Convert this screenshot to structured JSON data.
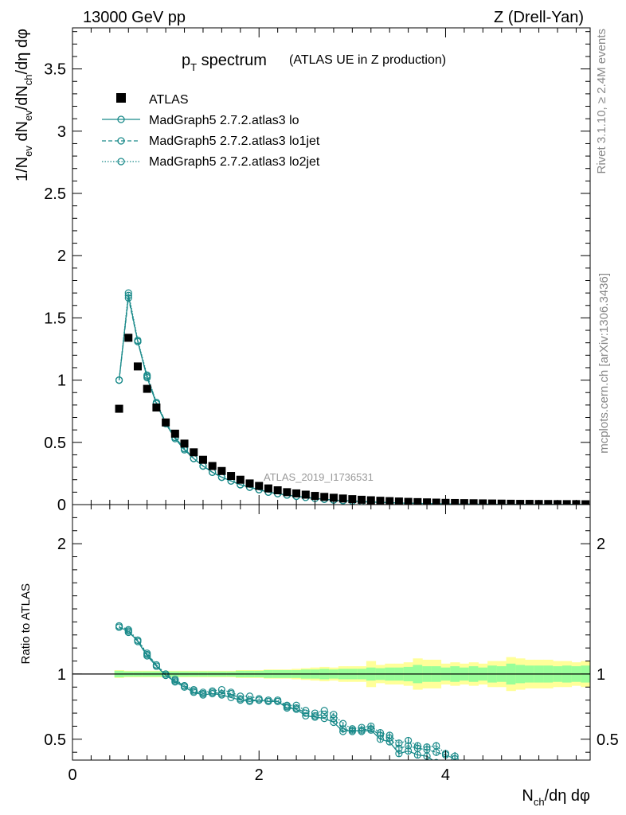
{
  "header": {
    "left": "13000 GeV pp",
    "right": "Z (Drell-Yan)"
  },
  "title": {
    "main": "p",
    "main_sub": "T",
    "main_rest": " spectrum",
    "paren": "(ATLAS UE in Z production)"
  },
  "side_labels": {
    "rivet": "Rivet 3.1.10, ≥ 2.4M events",
    "mcplots": "mcplots.cern.ch [arXiv:1306.3436]"
  },
  "watermark": "ATLAS_2019_I1736531",
  "axes": {
    "ylabel_top": "1/N_ev dN_ev/dN_ch/dη dφ",
    "ylabel_bottom": "Ratio to ATLAS",
    "xlabel": "N_ch/dη dφ"
  },
  "legend": [
    {
      "label": "ATLAS",
      "style": "data"
    },
    {
      "label": "MadGraph5 2.7.2.atlas3 lo",
      "style": "solid"
    },
    {
      "label": "MadGraph5 2.7.2.atlas3 lo1jet",
      "style": "dashed"
    },
    {
      "label": "MadGraph5 2.7.2.atlas3 lo2jet",
      "style": "dotted"
    }
  ],
  "colors": {
    "data": "#000000",
    "mc": "#1a8a8a",
    "band_inner": "#99ff99",
    "band_outer": "#ffff99"
  },
  "chart_data": [
    {
      "type": "scatter",
      "panel": "main",
      "xlim": [
        0,
        5.55
      ],
      "ylim": [
        0,
        3.83
      ],
      "x_ticks": [
        "0",
        "2",
        "4"
      ],
      "y_ticks": [
        "0",
        "0.5",
        "1",
        "1.5",
        "2",
        "2.5",
        "3",
        "3.5"
      ],
      "x": [
        0.5,
        0.6,
        0.7,
        0.8,
        0.9,
        1.0,
        1.1,
        1.2,
        1.3,
        1.4,
        1.5,
        1.6,
        1.7,
        1.8,
        1.9,
        2.0,
        2.1,
        2.2,
        2.3,
        2.4,
        2.5,
        2.6,
        2.7,
        2.8,
        2.9,
        3.0,
        3.1,
        3.2,
        3.3,
        3.4,
        3.5,
        3.6,
        3.7,
        3.8,
        3.9,
        4.0,
        4.1,
        4.2,
        4.3,
        4.4,
        4.5,
        4.6,
        4.7,
        4.8,
        4.9,
        5.0,
        5.1,
        5.2,
        5.3,
        5.4,
        5.5
      ],
      "series": [
        {
          "name": "ATLAS",
          "values": [
            0.77,
            1.34,
            1.11,
            0.93,
            0.78,
            0.66,
            0.57,
            0.49,
            0.42,
            0.36,
            0.31,
            0.27,
            0.23,
            0.2,
            0.17,
            0.15,
            0.13,
            0.115,
            0.1,
            0.09,
            0.08,
            0.07,
            0.062,
            0.055,
            0.049,
            0.044,
            0.039,
            0.035,
            0.031,
            0.028,
            0.025,
            0.022,
            0.02,
            0.018,
            0.016,
            0.014,
            0.013,
            0.012,
            0.011,
            0.01,
            0.009,
            0.008,
            0.007,
            0.006,
            0.006,
            0.005,
            0.005,
            0.004,
            0.004,
            0.004,
            0.003
          ]
        },
        {
          "name": "MadGraph5 2.7.2.atlas3 lo",
          "values": [
            1.0,
            1.68,
            1.31,
            1.02,
            0.81,
            0.65,
            0.53,
            0.44,
            0.37,
            0.31,
            0.26,
            0.22,
            0.19,
            0.16,
            0.14,
            0.12,
            0.1,
            0.088,
            0.077,
            0.067,
            0.058,
            0.05,
            0.043,
            0.037,
            0.032,
            0.028,
            0.024,
            0.021,
            0.018,
            0.015,
            0.013,
            0.011,
            0.01,
            0.008,
            0.007,
            0.006,
            0.005,
            0.004,
            0.004,
            0.003,
            0.003,
            0.002,
            0.002,
            0.002,
            0.001,
            0.001,
            0.001,
            0.001,
            0.001,
            0.001,
            0.001
          ]
        },
        {
          "name": "MadGraph5 2.7.2.atlas3 lo1jet",
          "values": [
            1.0,
            1.66,
            1.31,
            1.03,
            0.82,
            0.66,
            0.54,
            0.45,
            0.37,
            0.31,
            0.26,
            0.22,
            0.19,
            0.16,
            0.14,
            0.12,
            0.1,
            0.088,
            0.077,
            0.067,
            0.058,
            0.05,
            0.043,
            0.037,
            0.032,
            0.028,
            0.024,
            0.021,
            0.018,
            0.015,
            0.013,
            0.011,
            0.01,
            0.008,
            0.007,
            0.006,
            0.005,
            0.004,
            0.004,
            0.003,
            0.003,
            0.002,
            0.002,
            0.002,
            0.001,
            0.001,
            0.001,
            0.001,
            0.001,
            0.001,
            0.001
          ]
        },
        {
          "name": "MadGraph5 2.7.2.atlas3 lo2jet",
          "values": [
            1.0,
            1.7,
            1.32,
            1.04,
            0.82,
            0.66,
            0.54,
            0.45,
            0.37,
            0.31,
            0.26,
            0.22,
            0.19,
            0.16,
            0.14,
            0.12,
            0.1,
            0.088,
            0.077,
            0.067,
            0.058,
            0.05,
            0.043,
            0.037,
            0.032,
            0.028,
            0.024,
            0.021,
            0.018,
            0.015,
            0.013,
            0.011,
            0.01,
            0.008,
            0.007,
            0.006,
            0.005,
            0.004,
            0.004,
            0.003,
            0.003,
            0.002,
            0.002,
            0.002,
            0.001,
            0.001,
            0.001,
            0.001,
            0.001,
            0.001,
            0.001
          ]
        }
      ]
    },
    {
      "type": "line",
      "panel": "ratio",
      "xlim": [
        0,
        5.55
      ],
      "ylim": [
        0.34,
        2.3
      ],
      "x_ticks": [
        "0",
        "2",
        "4"
      ],
      "y_ticks": [
        "0.5",
        "1",
        "2"
      ],
      "reference": 1,
      "x": [
        0.5,
        0.6,
        0.7,
        0.8,
        0.9,
        1.0,
        1.1,
        1.2,
        1.3,
        1.4,
        1.5,
        1.6,
        1.7,
        1.8,
        1.9,
        2.0,
        2.1,
        2.2,
        2.3,
        2.4,
        2.5,
        2.6,
        2.7,
        2.8,
        2.9,
        3.0,
        3.1,
        3.2,
        3.3,
        3.4,
        3.5,
        3.6,
        3.7,
        3.8,
        3.9,
        4.0,
        4.1
      ],
      "band": {
        "x": [
          0.45,
          0.55,
          0.65,
          0.75,
          0.85,
          0.95,
          1.05,
          1.15,
          1.25,
          1.35,
          1.45,
          1.55,
          1.65,
          1.75,
          1.85,
          1.95,
          2.05,
          2.15,
          2.25,
          2.35,
          2.45,
          2.55,
          2.65,
          2.75,
          2.85,
          2.95,
          3.05,
          3.15,
          3.25,
          3.35,
          3.45,
          3.55,
          3.65,
          3.75,
          3.85,
          3.95,
          4.05,
          4.15,
          4.25,
          4.35,
          4.45,
          4.55,
          4.65,
          4.75,
          4.85,
          4.95,
          5.05,
          5.15,
          5.25,
          5.35,
          5.45,
          5.55
        ],
        "inner": [
          0.025,
          0.02,
          0.02,
          0.02,
          0.02,
          0.02,
          0.02,
          0.02,
          0.02,
          0.02,
          0.02,
          0.02,
          0.02,
          0.025,
          0.025,
          0.025,
          0.03,
          0.03,
          0.03,
          0.03,
          0.035,
          0.035,
          0.04,
          0.035,
          0.04,
          0.04,
          0.04,
          0.05,
          0.045,
          0.05,
          0.05,
          0.055,
          0.07,
          0.06,
          0.06,
          0.05,
          0.06,
          0.05,
          0.06,
          0.05,
          0.065,
          0.06,
          0.08,
          0.07,
          0.065,
          0.065,
          0.065,
          0.06,
          0.065,
          0.06,
          0.065,
          0.065
        ],
        "outer": [
          0.03,
          0.025,
          0.025,
          0.025,
          0.025,
          0.025,
          0.025,
          0.025,
          0.025,
          0.025,
          0.025,
          0.025,
          0.025,
          0.03,
          0.03,
          0.03,
          0.035,
          0.035,
          0.035,
          0.04,
          0.045,
          0.05,
          0.055,
          0.05,
          0.06,
          0.06,
          0.06,
          0.1,
          0.07,
          0.08,
          0.08,
          0.09,
          0.12,
          0.11,
          0.11,
          0.08,
          0.09,
          0.08,
          0.09,
          0.08,
          0.1,
          0.1,
          0.13,
          0.12,
          0.11,
          0.11,
          0.11,
          0.1,
          0.1,
          0.09,
          0.1,
          0.1
        ]
      },
      "series": [
        {
          "name": "MadGraph5 2.7.2.atlas3 lo",
          "values": [
            1.36,
            1.33,
            1.25,
            1.14,
            1.06,
            0.99,
            0.94,
            0.9,
            0.86,
            0.84,
            0.85,
            0.84,
            0.82,
            0.8,
            0.79,
            0.8,
            0.79,
            0.79,
            0.74,
            0.73,
            0.68,
            0.67,
            0.66,
            0.63,
            0.56,
            0.57,
            0.56,
            0.57,
            0.5,
            0.48,
            0.39,
            0.41,
            0.38,
            0.37,
            0.32,
            0.31,
            0.29
          ]
        },
        {
          "name": "MadGraph5 2.7.2.atlas3 lo1jet",
          "values": [
            1.36,
            1.32,
            1.26,
            1.15,
            1.07,
            0.99,
            0.95,
            0.91,
            0.87,
            0.85,
            0.86,
            0.85,
            0.85,
            0.81,
            0.8,
            0.8,
            0.79,
            0.79,
            0.75,
            0.74,
            0.7,
            0.68,
            0.69,
            0.66,
            0.58,
            0.56,
            0.57,
            0.58,
            0.53,
            0.51,
            0.43,
            0.45,
            0.43,
            0.42,
            0.4,
            0.38,
            0.35
          ]
        },
        {
          "name": "MadGraph5 2.7.2.atlas3 lo2jet",
          "values": [
            1.37,
            1.34,
            1.26,
            1.16,
            1.07,
            1.0,
            0.96,
            0.91,
            0.88,
            0.86,
            0.87,
            0.88,
            0.86,
            0.83,
            0.83,
            0.81,
            0.8,
            0.8,
            0.76,
            0.76,
            0.72,
            0.7,
            0.72,
            0.69,
            0.62,
            0.58,
            0.59,
            0.6,
            0.55,
            0.53,
            0.47,
            0.49,
            0.45,
            0.44,
            0.45,
            0.39,
            0.37
          ]
        }
      ]
    }
  ]
}
